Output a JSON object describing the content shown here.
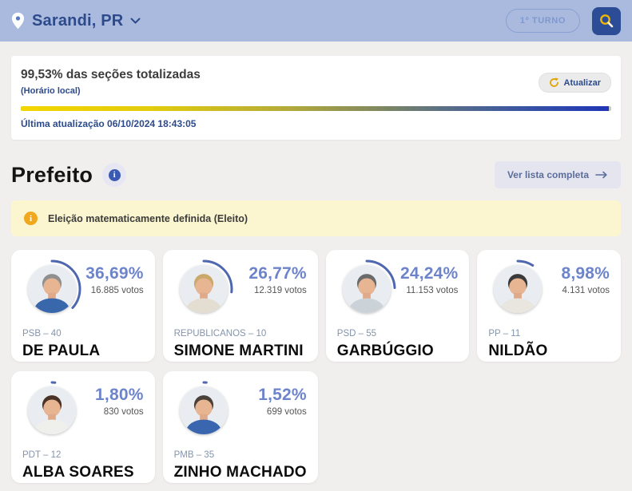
{
  "header": {
    "location": "Sarandi, PR",
    "round_button": "1º TURNO"
  },
  "totalization": {
    "heading": "99,53% das seções totalizadas",
    "subheading": "(Horário local)",
    "refresh_label": "Atualizar",
    "progress_pct": 99.53,
    "last_update": "Última atualização 06/10/2024 18:43:05"
  },
  "section": {
    "title": "Prefeito",
    "info_glyph": "i",
    "view_all": "Ver lista completa"
  },
  "alert": {
    "glyph": "i",
    "text": "Eleição matematicamente definida (Eleito)"
  },
  "colors": {
    "header_bg": "#a9bade",
    "accent_blue": "#2d4a8a",
    "search_button_bg": "#2c4d95",
    "search_icon": "#f2b500",
    "progress_gradient_start": "#f3d600",
    "progress_gradient_end": "#1f35b4",
    "percentage_text": "#6d84ca",
    "ring": "#4e67ae",
    "alert_bg": "#fbf6cf",
    "alert_icon": "#f2a81d"
  },
  "candidates": [
    {
      "name": "DE PAULA",
      "party": "PSB – 40",
      "pct_label": "36,69%",
      "pct_value": 36.69,
      "votes": "16.885 votos",
      "photo": {
        "hair": "#8f8f8f",
        "shirt": "#3867ab"
      }
    },
    {
      "name": "SIMONE MARTINI",
      "party": "REPUBLICANOS – 10",
      "pct_label": "26,77%",
      "pct_value": 26.77,
      "votes": "12.319 votos",
      "photo": {
        "hair": "#c9a86a",
        "shirt": "#e3ddd2"
      }
    },
    {
      "name": "GARBÚGGIO",
      "party": "PSD – 55",
      "pct_label": "24,24%",
      "pct_value": 24.24,
      "votes": "11.153 votos",
      "photo": {
        "hair": "#6b6b6b",
        "shirt": "#ccd3d8"
      }
    },
    {
      "name": "NILDÃO",
      "party": "PP – 11",
      "pct_label": "8,98%",
      "pct_value": 8.98,
      "votes": "4.131 votos",
      "photo": {
        "hair": "#3a3a3a",
        "shirt": "#e9e6e0"
      }
    },
    {
      "name": "ALBA SOARES",
      "party": "PDT – 12",
      "pct_label": "1,80%",
      "pct_value": 1.8,
      "votes": "830 votos",
      "photo": {
        "hair": "#4a3226",
        "shirt": "#efefec"
      }
    },
    {
      "name": "ZINHO MACHADO",
      "party": "PMB – 35",
      "pct_label": "1,52%",
      "pct_value": 1.52,
      "votes": "699 votos",
      "photo": {
        "hair": "#4a423a",
        "shirt": "#3a66b0"
      }
    }
  ]
}
